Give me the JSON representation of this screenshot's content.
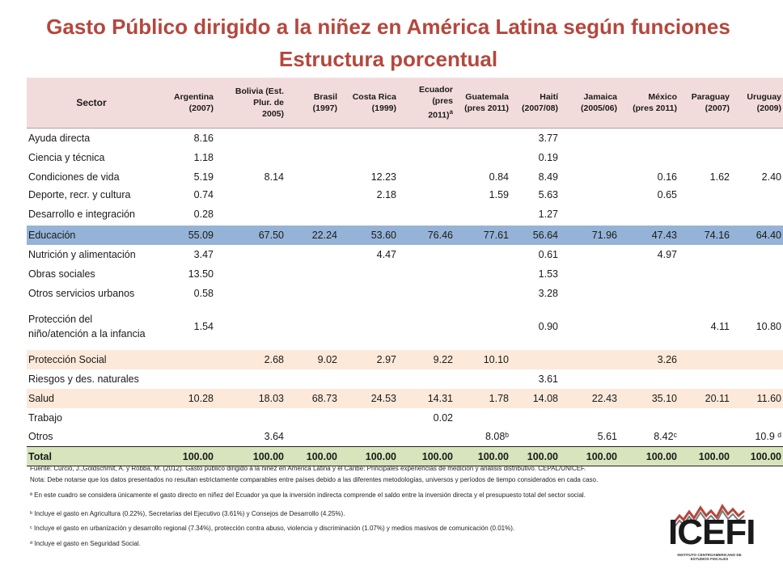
{
  "title": "Gasto Público dirigido a la niñez en América Latina según funciones",
  "subtitle": "Estructura porcentual",
  "table": {
    "sector_header": "Sector",
    "columns": [
      {
        "name": "Argentina",
        "sub": "(2007)"
      },
      {
        "name": "Bolivia (Est. Plur. de",
        "sub": "2005)"
      },
      {
        "name": "Brasil",
        "sub": "(1997)"
      },
      {
        "name": "Costa Rica",
        "sub": "(1999)"
      },
      {
        "name": "Ecuador (pres",
        "sub": "2011)",
        "mark": "a"
      },
      {
        "name": "Guatemala",
        "sub": "(pres 2011)"
      },
      {
        "name": "Haití",
        "sub": "(2007/08)"
      },
      {
        "name": "Jamaica",
        "sub": "(2005/06)"
      },
      {
        "name": "México",
        "sub": "(pres 2011)"
      },
      {
        "name": "Paraguay",
        "sub": "(2007)"
      },
      {
        "name": "Uruguay",
        "sub": "(2009)"
      }
    ],
    "rows": [
      {
        "sector": "Ayuda directa",
        "values": [
          "8.16",
          "",
          "",
          "",
          "",
          "",
          "3.77",
          "",
          "",
          "",
          ""
        ]
      },
      {
        "sector": "Ciencia y técnica",
        "values": [
          "1.18",
          "",
          "",
          "",
          "",
          "",
          "0.19",
          "",
          "",
          "",
          ""
        ]
      },
      {
        "sector": "Condiciones de vida",
        "values": [
          "5.19",
          "8.14",
          "",
          "12.23",
          "",
          "0.84",
          "8.49",
          "",
          "0.16",
          "1.62",
          "2.40"
        ]
      },
      {
        "sector": "Deporte, recr.  y cultura",
        "values": [
          "0.74",
          "",
          "",
          "2.18",
          "",
          "1.59",
          "5.63",
          "",
          "0.65",
          "",
          ""
        ]
      },
      {
        "sector": "Desarrollo e integración",
        "values": [
          "0.28",
          "",
          "",
          "",
          "",
          "",
          "1.27",
          "",
          "",
          "",
          ""
        ]
      },
      {
        "sector": "Educación",
        "values": [
          "55.09",
          "67.50",
          "22.24",
          "53.60",
          "76.46",
          "77.61",
          "56.64",
          "71.96",
          "47.43",
          "74.16",
          "64.40"
        ]
      },
      {
        "sector": "Nutrición y alimentación",
        "values": [
          "3.47",
          "",
          "",
          "4.47",
          "",
          "",
          "0.61",
          "",
          "4.97",
          "",
          ""
        ]
      },
      {
        "sector": "Obras sociales",
        "values": [
          "13.50",
          "",
          "",
          "",
          "",
          "",
          "1.53",
          "",
          "",
          "",
          ""
        ]
      },
      {
        "sector": "Otros servicios urbanos",
        "values": [
          "0.58",
          "",
          "",
          "",
          "",
          "",
          "3.28",
          "",
          "",
          "",
          ""
        ]
      },
      {
        "sector": "Protección del niño/atención a la infancia",
        "values": [
          "1.54",
          "",
          "",
          "",
          "",
          "",
          "0.90",
          "",
          "",
          "4.11",
          "10.80"
        ]
      },
      {
        "sector": "Protección Social",
        "values": [
          "",
          "2.68",
          "9.02",
          "2.97",
          "9.22",
          "10.10",
          "",
          "",
          "3.26",
          "",
          ""
        ]
      },
      {
        "sector": "Riesgos y des.  naturales",
        "values": [
          "",
          "",
          "",
          "",
          "",
          "",
          "3.61",
          "",
          "",
          "",
          ""
        ]
      },
      {
        "sector": "Salud",
        "values": [
          "10.28",
          "18.03",
          "68.73",
          "24.53",
          "14.31",
          "1.78",
          "14.08",
          "22.43",
          "35.10",
          "20.11",
          "11.60"
        ]
      },
      {
        "sector": "Trabajo",
        "values": [
          "",
          "",
          "",
          "",
          "0.02",
          "",
          "",
          "",
          "",
          "",
          ""
        ]
      },
      {
        "sector": "Otros",
        "values": [
          "",
          "3.64",
          "",
          "",
          "",
          "8.08ᵇ",
          "",
          "5.61",
          "8.42ᶜ",
          "",
          "10.9 ᵈ"
        ]
      }
    ],
    "total": {
      "sector": "Total",
      "values": [
        "100.00",
        "100.00",
        "100.00",
        "100.00",
        "100.00",
        "100.00",
        "100.00",
        "100.00",
        "100.00",
        "100.00",
        "100.00"
      ]
    }
  },
  "notes": {
    "fuente": "Fuente: Curcio, J.,Goldschmit, A. y Robba, M. (2012). Gasto público dirigido a la niñez en América Latina y el Caribe: Principales experiencias de medición y análisis distributivo. CEPAL/UNICEF.",
    "nota": "Nota: Debe notarse que los datos presentados no resultan estrictamente comparables entre países debido a las diferentes metodologías, universos y períodos de tiempo considerados en cada caso.",
    "a": "ª En este cuadro se considera únicamente el gasto directo en niñez del Ecuador ya que la inversión indirecta comprende el saldo entre la inversión directa y el presupuesto total del sector social.",
    "b": "ᵇ Incluye el gasto en Agricultura (0.22%), Secretarías del Ejecutivo (3.61%) y Consejos de Desarrollo (4.25%).",
    "c": "ᶜ Incluye el gasto en urbanización y desarrollo regional (7.34%), protección contra abuso, violencia y discriminación (1.07%) y medios masivos de comunicación (0.01%).",
    "d": "ᵈ Incluye el gasto en Seguridad Social."
  },
  "logo": {
    "name": "ICEFI",
    "sub": "INSTITUTO CENTROAMERICANO DE ESTUDIOS FISCALES"
  }
}
